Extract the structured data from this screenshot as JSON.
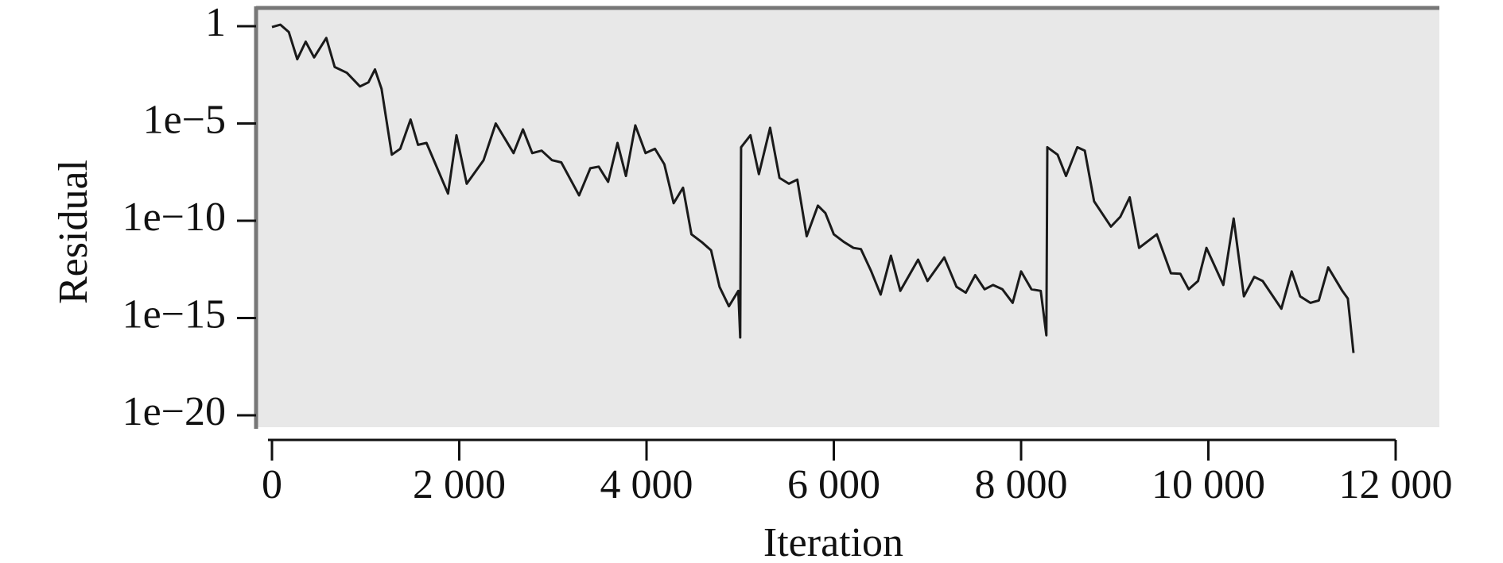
{
  "chart_data": {
    "type": "line",
    "x_label": "Iteration",
    "y_label": "Residual",
    "y_log_scale": true,
    "background": "#e8e8e8",
    "xlim": [
      0,
      12000
    ],
    "xticks": [
      0,
      {
        "value": 2000,
        "label": "2 000"
      },
      {
        "value": 4000,
        "label": "4 000"
      },
      {
        "value": 6000,
        "label": "6 000"
      },
      {
        "value": 8000,
        "label": "8 000"
      },
      {
        "value": 10000,
        "label": "10 000"
      },
      {
        "value": 12000,
        "label": "12 000"
      }
    ],
    "ylim": [
      1e-20,
      1
    ],
    "yticks": [
      1,
      {
        "value": 1e-05,
        "label": "1e−5"
      },
      {
        "value": 1e-10,
        "label": "1e−10"
      },
      {
        "value": 1e-15,
        "label": "1e−15"
      },
      {
        "value": 1e-20,
        "label": "1e−20"
      }
    ],
    "series": [
      {
        "color": "#1a1a1a",
        "x": [
          0,
          90,
          180,
          270,
          360,
          450,
          580,
          670,
          800,
          940,
          1030,
          1100,
          1170,
          1280,
          1370,
          1480,
          1560,
          1650,
          1880,
          1970,
          2080,
          2260,
          2390,
          2580,
          2680,
          2780,
          2880,
          2990,
          3090,
          3280,
          3400,
          3490,
          3590,
          3690,
          3780,
          3880,
          3990,
          4090,
          4190,
          4290,
          4390,
          4480,
          4590,
          4690,
          4780,
          4880,
          4980,
          5000,
          5010,
          5110,
          5200,
          5320,
          5420,
          5520,
          5610,
          5710,
          5830,
          5910,
          6000,
          6110,
          6210,
          6290,
          6400,
          6500,
          6610,
          6710,
          6900,
          7000,
          7180,
          7310,
          7410,
          7510,
          7610,
          7700,
          7800,
          7910,
          8000,
          8110,
          8210,
          8270,
          8280,
          8390,
          8480,
          8600,
          8680,
          8780,
          8960,
          9060,
          9160,
          9260,
          9450,
          9600,
          9700,
          9790,
          9890,
          9980,
          10160,
          10270,
          10380,
          10490,
          10580,
          10780,
          10890,
          10980,
          11090,
          11180,
          11280,
          11430,
          11490,
          11550
        ],
        "values": [
          0.9,
          1.2,
          0.5,
          0.02,
          0.16,
          0.025,
          0.25,
          0.008,
          0.004,
          0.0008,
          0.0013,
          0.006,
          0.0006,
          2.5e-07,
          5e-07,
          1.6e-05,
          8e-07,
          1e-06,
          2.5e-09,
          2.5e-06,
          8e-09,
          1.3e-07,
          1e-05,
          3e-07,
          5e-06,
          3e-07,
          4e-07,
          1.3e-07,
          1e-07,
          2e-09,
          5e-08,
          6e-08,
          1e-08,
          1e-06,
          2e-08,
          8e-06,
          3e-07,
          5e-07,
          8e-08,
          8e-10,
          5e-09,
          2e-11,
          8e-12,
          3e-12,
          4e-14,
          4e-15,
          2.5e-14,
          1e-16,
          6e-07,
          2.5e-06,
          2.5e-08,
          6e-06,
          1.6e-08,
          8e-09,
          1.3e-08,
          1.6e-11,
          6e-10,
          2.5e-10,
          2e-11,
          8e-12,
          4e-12,
          3.5e-12,
          2.5e-13,
          1.6e-14,
          1.6e-12,
          2.5e-14,
          1e-12,
          8e-14,
          1.3e-12,
          4e-14,
          2e-14,
          1.6e-13,
          3e-14,
          5e-14,
          3e-14,
          6e-15,
          2.5e-13,
          3e-14,
          2.5e-14,
          1.3e-16,
          6e-07,
          2.5e-07,
          2e-08,
          6e-07,
          4e-07,
          1e-09,
          5e-11,
          1.6e-10,
          1.6e-09,
          4e-12,
          2e-11,
          2e-13,
          1.9e-13,
          3e-14,
          8e-14,
          4e-12,
          5e-14,
          1.3e-10,
          1.3e-14,
          1.3e-13,
          8e-14,
          3e-15,
          2.5e-13,
          1.3e-14,
          6e-15,
          8e-15,
          4e-13,
          2.5e-14,
          1e-14,
          1.6e-17
        ]
      }
    ]
  }
}
